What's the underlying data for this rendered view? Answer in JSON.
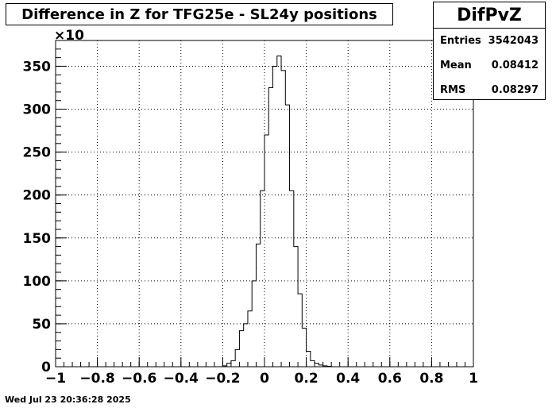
{
  "chart_data": {
    "type": "bar",
    "title": "Difference in Z for TFG25e - SL24y positions",
    "stats": {
      "name": "DifPvZ",
      "rows": [
        {
          "label": "Entries",
          "value": "3542043"
        },
        {
          "label": "Mean",
          "value": "0.08412"
        },
        {
          "label": "RMS",
          "value": "0.08297"
        }
      ]
    },
    "y_multiplier": "×10",
    "x_range": [
      -1,
      1
    ],
    "ylim": [
      0,
      380
    ],
    "x_ticks": [
      "−1",
      "−0.8",
      "−0.6",
      "−0.4",
      "−0.2",
      "0",
      "0.2",
      "0.4",
      "0.6",
      "0.8",
      "1"
    ],
    "y_ticks": [
      "0",
      "50",
      "100",
      "150",
      "200",
      "250",
      "300",
      "350"
    ],
    "grid": true,
    "bin_width": 0.02,
    "bins": [
      {
        "x": -0.2,
        "y": 1
      },
      {
        "x": -0.18,
        "y": 4
      },
      {
        "x": -0.16,
        "y": 7
      },
      {
        "x": -0.14,
        "y": 20
      },
      {
        "x": -0.12,
        "y": 42
      },
      {
        "x": -0.1,
        "y": 50
      },
      {
        "x": -0.08,
        "y": 65
      },
      {
        "x": -0.06,
        "y": 100
      },
      {
        "x": -0.04,
        "y": 143
      },
      {
        "x": -0.02,
        "y": 205
      },
      {
        "x": 0.0,
        "y": 270
      },
      {
        "x": 0.02,
        "y": 325
      },
      {
        "x": 0.04,
        "y": 350
      },
      {
        "x": 0.06,
        "y": 362
      },
      {
        "x": 0.08,
        "y": 345
      },
      {
        "x": 0.1,
        "y": 305
      },
      {
        "x": 0.12,
        "y": 205
      },
      {
        "x": 0.14,
        "y": 140
      },
      {
        "x": 0.16,
        "y": 85
      },
      {
        "x": 0.18,
        "y": 45
      },
      {
        "x": 0.2,
        "y": 18
      },
      {
        "x": 0.22,
        "y": 7
      },
      {
        "x": 0.24,
        "y": 4
      },
      {
        "x": 0.26,
        "y": 2
      },
      {
        "x": 0.28,
        "y": 1
      },
      {
        "x": 0.3,
        "y": 0.5
      }
    ]
  },
  "timestamp": "Wed Jul 23 20:36:28 2025"
}
